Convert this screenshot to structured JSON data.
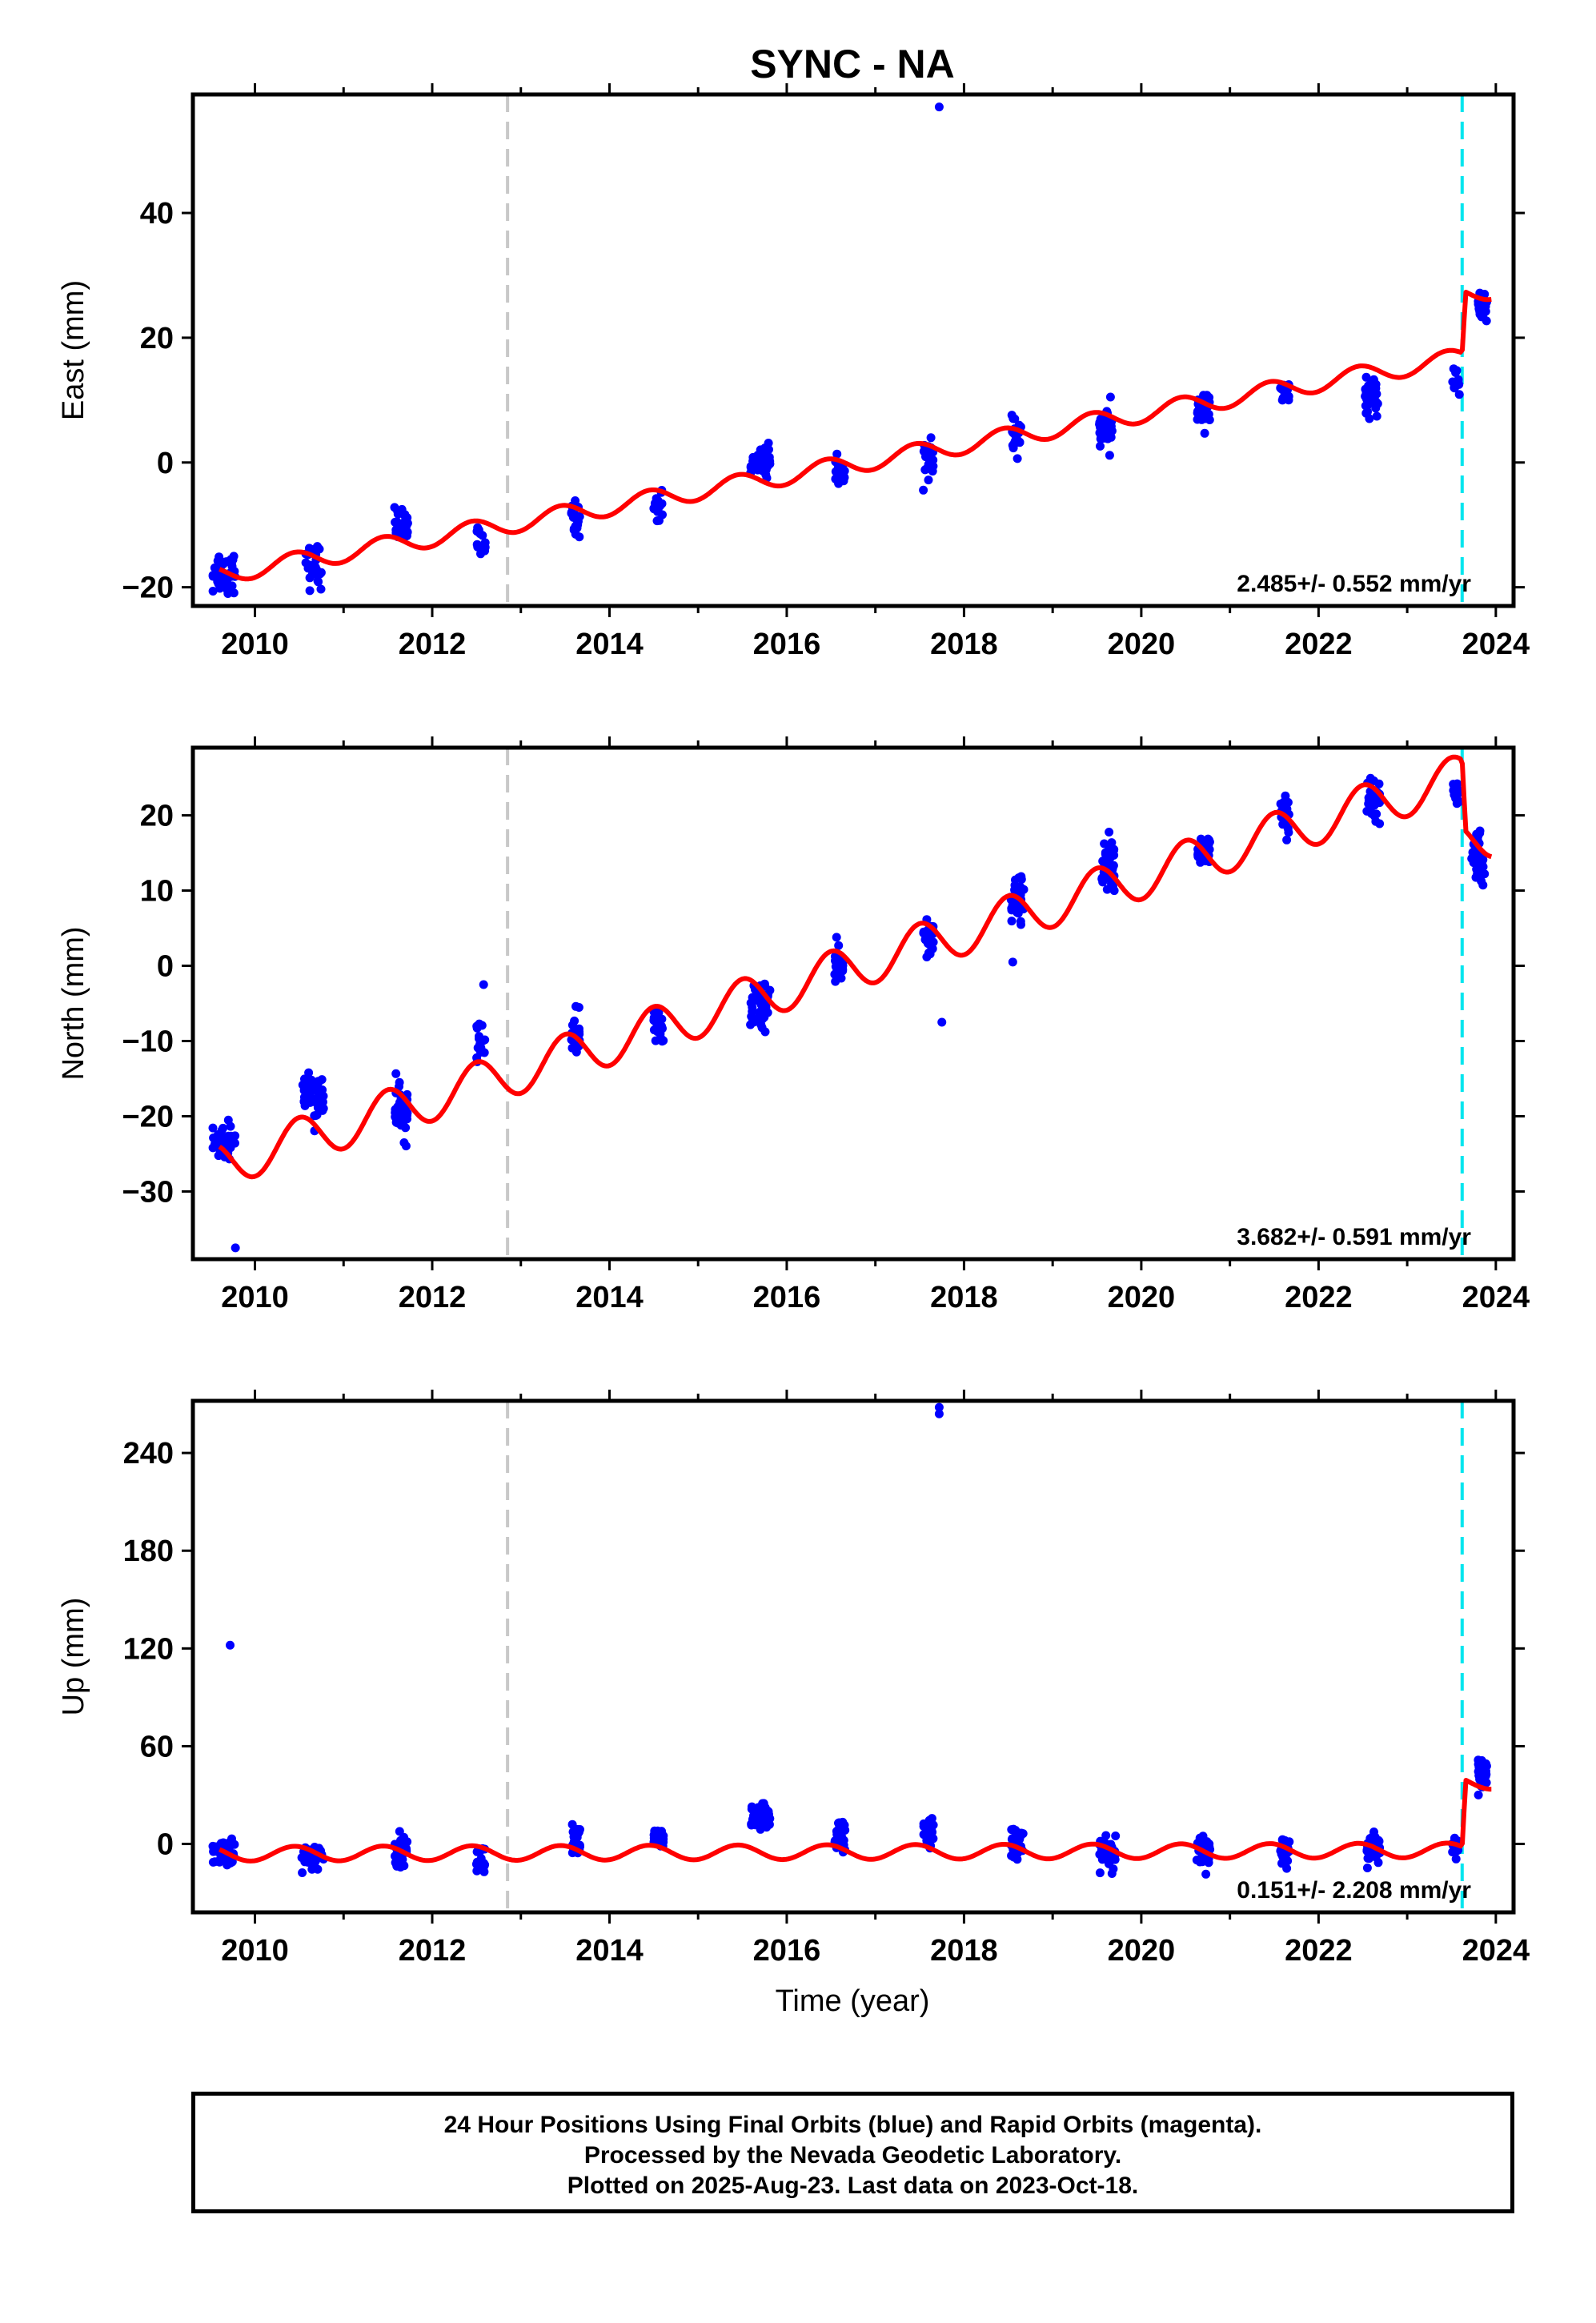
{
  "title": "SYNC - NA",
  "xlabel": "Time (year)",
  "footer": {
    "line1": "24 Hour Positions Using Final Orbits (blue) and Rapid Orbits (magenta).",
    "line2": "Processed by the Nevada Geodetic Laboratory.",
    "line3": "Plotted on 2025-Aug-23. Last data on 2023-Oct-18."
  },
  "colors": {
    "data": "#0000ff",
    "model": "#ff0000",
    "equipment_change": "#c8c8c8",
    "earthquake": "#00e5ee"
  },
  "vertical_lines": [
    {
      "x": 2012.85,
      "color": "#c8c8c8"
    },
    {
      "x": 2023.62,
      "color": "#00e5ee"
    }
  ],
  "chart_data": [
    {
      "type": "scatter",
      "ylabel": "East (mm)",
      "xlim": [
        2009.3,
        2024.2
      ],
      "ylim": [
        -23,
        59
      ],
      "xticks": [
        2010,
        2012,
        2014,
        2016,
        2018,
        2020,
        2022,
        2024
      ],
      "xtick_labels": [
        "2010",
        "2012",
        "2014",
        "2016",
        "2018",
        "2020",
        "2022",
        "2024"
      ],
      "yticks": [
        -20,
        0,
        20,
        40
      ],
      "ytick_labels": [
        "−20",
        "0",
        "20",
        "40"
      ],
      "rate_label": "2.485+/- 0.552 mm/yr",
      "clusters": [
        {
          "x": 2009.65,
          "y": -17.5,
          "n": 48,
          "spread": 3.2,
          "width": 0.25
        },
        {
          "x": 2010.65,
          "y": -16.5,
          "n": 30,
          "spread": 2.8,
          "width": 0.2
        },
        {
          "x": 2011.65,
          "y": -10.0,
          "n": 30,
          "spread": 2.2,
          "width": 0.15
        },
        {
          "x": 2012.55,
          "y": -13.0,
          "n": 14,
          "spread": 2.2,
          "width": 0.1
        },
        {
          "x": 2013.62,
          "y": -9.0,
          "n": 20,
          "spread": 2.2,
          "width": 0.1
        },
        {
          "x": 2014.55,
          "y": -7.0,
          "n": 18,
          "spread": 2.5,
          "width": 0.1
        },
        {
          "x": 2015.7,
          "y": 0.0,
          "n": 50,
          "spread": 1.8,
          "width": 0.22
        },
        {
          "x": 2016.6,
          "y": -1.5,
          "n": 20,
          "spread": 1.8,
          "width": 0.12
        },
        {
          "x": 2017.6,
          "y": 1.0,
          "n": 25,
          "spread": 2.6,
          "width": 0.12
        },
        {
          "x": 2018.6,
          "y": 4.0,
          "n": 22,
          "spread": 2.2,
          "width": 0.12
        },
        {
          "x": 2019.6,
          "y": 5.5,
          "n": 34,
          "spread": 3.0,
          "width": 0.15
        },
        {
          "x": 2020.7,
          "y": 8.5,
          "n": 34,
          "spread": 2.2,
          "width": 0.15
        },
        {
          "x": 2021.62,
          "y": 11.0,
          "n": 18,
          "spread": 1.6,
          "width": 0.1
        },
        {
          "x": 2022.6,
          "y": 10.5,
          "n": 36,
          "spread": 2.4,
          "width": 0.15
        },
        {
          "x": 2023.55,
          "y": 12.5,
          "n": 14,
          "spread": 1.8,
          "width": 0.08
        },
        {
          "x": 2023.85,
          "y": 25.0,
          "n": 40,
          "spread": 1.5,
          "width": 0.1
        }
      ],
      "outliers": [
        {
          "x": 2017.72,
          "y": 57
        }
      ],
      "model": {
        "y2010": -17.0,
        "rate": 2.485,
        "amp": 1.5,
        "phase": 0.2,
        "break_year": 2023.62,
        "break_offset": 10.0
      }
    },
    {
      "type": "scatter",
      "ylabel": "North (mm)",
      "xlim": [
        2009.3,
        2024.2
      ],
      "ylim": [
        -39,
        29
      ],
      "xticks": [
        2010,
        2012,
        2014,
        2016,
        2018,
        2020,
        2022,
        2024
      ],
      "xtick_labels": [
        "2010",
        "2012",
        "2014",
        "2016",
        "2018",
        "2020",
        "2022",
        "2024"
      ],
      "yticks": [
        -30,
        -20,
        -10,
        0,
        10,
        20
      ],
      "ytick_labels": [
        "−30",
        "−20",
        "−10",
        "0",
        "10",
        "20"
      ],
      "rate_label": "3.682+/- 0.591 mm/yr",
      "clusters": [
        {
          "x": 2009.65,
          "y": -23.5,
          "n": 45,
          "spread": 2.6,
          "width": 0.25
        },
        {
          "x": 2010.65,
          "y": -17.5,
          "n": 45,
          "spread": 2.6,
          "width": 0.25
        },
        {
          "x": 2011.65,
          "y": -19.5,
          "n": 40,
          "spread": 2.8,
          "width": 0.15
        },
        {
          "x": 2012.55,
          "y": -10.0,
          "n": 18,
          "spread": 2.4,
          "width": 0.1
        },
        {
          "x": 2013.62,
          "y": -9.0,
          "n": 24,
          "spread": 2.4,
          "width": 0.1
        },
        {
          "x": 2014.55,
          "y": -8.0,
          "n": 24,
          "spread": 2.2,
          "width": 0.12
        },
        {
          "x": 2015.7,
          "y": -5.0,
          "n": 50,
          "spread": 2.6,
          "width": 0.22
        },
        {
          "x": 2016.6,
          "y": 0.0,
          "n": 28,
          "spread": 2.0,
          "width": 0.12
        },
        {
          "x": 2017.6,
          "y": 4.0,
          "n": 24,
          "spread": 2.4,
          "width": 0.12
        },
        {
          "x": 2018.6,
          "y": 8.5,
          "n": 34,
          "spread": 2.4,
          "width": 0.15
        },
        {
          "x": 2019.62,
          "y": 13.5,
          "n": 42,
          "spread": 2.8,
          "width": 0.15
        },
        {
          "x": 2020.7,
          "y": 15.5,
          "n": 32,
          "spread": 2.2,
          "width": 0.15
        },
        {
          "x": 2021.62,
          "y": 20.5,
          "n": 24,
          "spread": 2.2,
          "width": 0.1
        },
        {
          "x": 2022.62,
          "y": 22.0,
          "n": 36,
          "spread": 2.6,
          "width": 0.15
        },
        {
          "x": 2023.55,
          "y": 23.0,
          "n": 16,
          "spread": 2.0,
          "width": 0.08
        },
        {
          "x": 2023.8,
          "y": 14.5,
          "n": 40,
          "spread": 2.4,
          "width": 0.15
        }
      ],
      "outliers": [
        {
          "x": 2009.78,
          "y": -37.5
        },
        {
          "x": 2017.75,
          "y": -7.5
        },
        {
          "x": 2012.58,
          "y": -2.5
        },
        {
          "x": 2018.55,
          "y": 0.5
        }
      ],
      "model": {
        "y2010": -25.0,
        "rate": 3.682,
        "amp": 3.0,
        "phase": 0.25,
        "break_year": 2023.62,
        "break_offset": -9.0
      }
    },
    {
      "type": "scatter",
      "ylabel": "Up (mm)",
      "xlim": [
        2009.3,
        2024.2
      ],
      "ylim": [
        -42,
        272
      ],
      "xticks": [
        2010,
        2012,
        2014,
        2016,
        2018,
        2020,
        2022,
        2024
      ],
      "xtick_labels": [
        "2010",
        "2012",
        "2014",
        "2016",
        "2018",
        "2020",
        "2022",
        "2024"
      ],
      "yticks": [
        0,
        60,
        120,
        180,
        240
      ],
      "ytick_labels": [
        "0",
        "60",
        "120",
        "180",
        "240"
      ],
      "rate_label": "0.151+/- 2.208 mm/yr",
      "clusters": [
        {
          "x": 2009.65,
          "y": -6.0,
          "n": 45,
          "spread": 8.5,
          "width": 0.25
        },
        {
          "x": 2010.65,
          "y": -10.0,
          "n": 40,
          "spread": 7.0,
          "width": 0.25
        },
        {
          "x": 2011.65,
          "y": -5.0,
          "n": 32,
          "spread": 9.5,
          "width": 0.15
        },
        {
          "x": 2012.55,
          "y": -10.0,
          "n": 18,
          "spread": 10.0,
          "width": 0.1
        },
        {
          "x": 2013.62,
          "y": 3.0,
          "n": 22,
          "spread": 7.0,
          "width": 0.1
        },
        {
          "x": 2014.55,
          "y": 2.0,
          "n": 22,
          "spread": 7.0,
          "width": 0.12
        },
        {
          "x": 2015.7,
          "y": 16.0,
          "n": 55,
          "spread": 6.5,
          "width": 0.22
        },
        {
          "x": 2016.6,
          "y": 6.0,
          "n": 28,
          "spread": 7.0,
          "width": 0.12
        },
        {
          "x": 2017.6,
          "y": 6.0,
          "n": 26,
          "spread": 7.5,
          "width": 0.12
        },
        {
          "x": 2018.6,
          "y": 2.0,
          "n": 30,
          "spread": 9.0,
          "width": 0.15
        },
        {
          "x": 2019.62,
          "y": -6.0,
          "n": 40,
          "spread": 8.5,
          "width": 0.18
        },
        {
          "x": 2020.7,
          "y": -6.0,
          "n": 38,
          "spread": 8.0,
          "width": 0.15
        },
        {
          "x": 2021.62,
          "y": -5.0,
          "n": 22,
          "spread": 7.5,
          "width": 0.1
        },
        {
          "x": 2022.62,
          "y": -2.0,
          "n": 36,
          "spread": 7.5,
          "width": 0.15
        },
        {
          "x": 2023.55,
          "y": -2.0,
          "n": 14,
          "spread": 6.0,
          "width": 0.08
        },
        {
          "x": 2023.85,
          "y": 44.0,
          "n": 40,
          "spread": 7.0,
          "width": 0.1
        }
      ],
      "outliers": [
        {
          "x": 2009.72,
          "y": 122
        },
        {
          "x": 2017.72,
          "y": 268
        },
        {
          "x": 2017.72,
          "y": 264
        }
      ],
      "model": {
        "y2010": -6.0,
        "rate": 0.151,
        "amp": 4.5,
        "phase": 0.2,
        "break_year": 2023.62,
        "break_offset": 42.0
      }
    }
  ]
}
